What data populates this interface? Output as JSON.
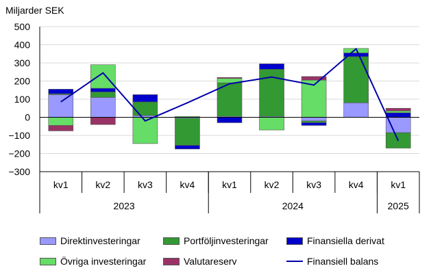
{
  "chart_data": {
    "type": "bar",
    "stacked": true,
    "ylabel": "Miljarder SEK",
    "ylim": [
      -300,
      500
    ],
    "yticks": [
      500,
      400,
      300,
      200,
      100,
      0,
      -100,
      -200,
      -300
    ],
    "grid": true,
    "legend_position": "bottom",
    "categories": [
      "kv1",
      "kv2",
      "kv3",
      "kv4",
      "kv1",
      "kv2",
      "kv3",
      "kv4",
      "kv1"
    ],
    "year_groups": [
      {
        "label": "2023",
        "count": 4
      },
      {
        "label": "2024",
        "count": 4
      },
      {
        "label": "2025",
        "count": 1
      }
    ],
    "series": [
      {
        "name": "Direktinvesteringar",
        "color": "#9999ff",
        "values": [
          125,
          110,
          10,
          -5,
          5,
          5,
          -20,
          80,
          -85
        ]
      },
      {
        "name": "Portföljinvesteringar",
        "color": "#339933",
        "values": [
          5,
          30,
          75,
          -150,
          185,
          260,
          -10,
          255,
          -85
        ]
      },
      {
        "name": "Finansiella derivat",
        "color": "#0000cc",
        "values": [
          25,
          20,
          40,
          -20,
          -30,
          30,
          -15,
          20,
          25
        ]
      },
      {
        "name": "Övriga investeringar",
        "color": "#66dd66",
        "values": [
          -45,
          130,
          -145,
          5,
          25,
          -70,
          205,
          25,
          10
        ]
      },
      {
        "name": "Valutareserv",
        "color": "#993366",
        "values": [
          -30,
          -40,
          0,
          0,
          5,
          0,
          20,
          0,
          15
        ]
      }
    ],
    "line_series": {
      "name": "Finansiell balans",
      "color": "#0000aa",
      "values": [
        85,
        245,
        -20,
        80,
        185,
        222,
        178,
        378,
        -130
      ]
    }
  }
}
